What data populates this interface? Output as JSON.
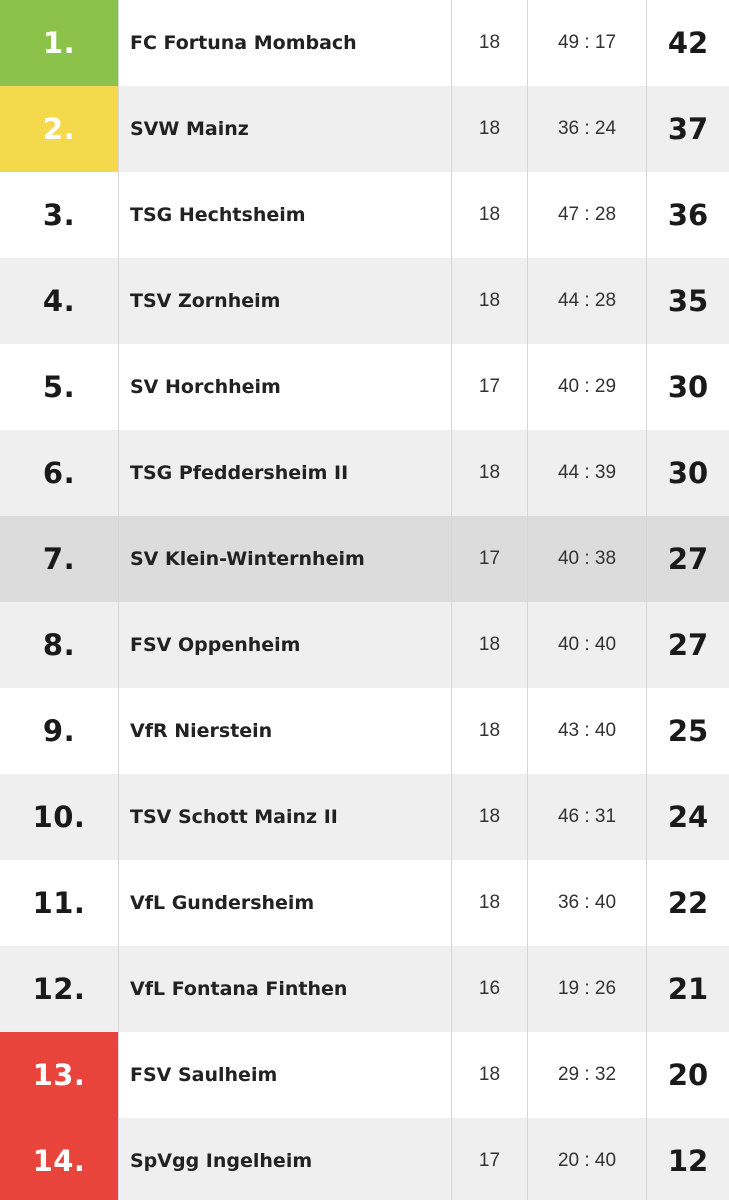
{
  "standings": [
    {
      "rank": "1.",
      "team": "FC Fortuna Mombach",
      "games": "18",
      "goals": "49 : 17",
      "points": "42",
      "marker_color": "#8bc34a"
    },
    {
      "rank": "2.",
      "team": "SVW Mainz",
      "games": "18",
      "goals": "36 : 24",
      "points": "37",
      "marker_color": "#f5d94c"
    },
    {
      "rank": "3.",
      "team": "TSG Hechtsheim",
      "games": "18",
      "goals": "47 : 28",
      "points": "36"
    },
    {
      "rank": "4.",
      "team": "TSV Zornheim",
      "games": "18",
      "goals": "44 : 28",
      "points": "35"
    },
    {
      "rank": "5.",
      "team": "SV Horchheim",
      "games": "17",
      "goals": "40 : 29",
      "points": "30"
    },
    {
      "rank": "6.",
      "team": "TSG Pfeddersheim II",
      "games": "18",
      "goals": "44 : 39",
      "points": "30"
    },
    {
      "rank": "7.",
      "team": "SV Klein-Winternheim",
      "games": "17",
      "goals": "40 : 38",
      "points": "27",
      "highlight_color": "#dcdcdc"
    },
    {
      "rank": "8.",
      "team": "FSV Oppenheim",
      "games": "18",
      "goals": "40 : 40",
      "points": "27"
    },
    {
      "rank": "9.",
      "team": "VfR Nierstein",
      "games": "18",
      "goals": "43 : 40",
      "points": "25"
    },
    {
      "rank": "10.",
      "team": "TSV Schott Mainz II",
      "games": "18",
      "goals": "46 : 31",
      "points": "24"
    },
    {
      "rank": "11.",
      "team": "VfL Gundersheim",
      "games": "18",
      "goals": "36 : 40",
      "points": "22"
    },
    {
      "rank": "12.",
      "team": "VfL Fontana Finthen",
      "games": "16",
      "goals": "19 : 26",
      "points": "21"
    },
    {
      "rank": "13.",
      "team": "FSV Saulheim",
      "games": "18",
      "goals": "29 : 32",
      "points": "20",
      "marker_color": "#e8443c"
    },
    {
      "rank": "14.",
      "team": "SpVgg Ingelheim",
      "games": "17",
      "goals": "20 : 40",
      "points": "12",
      "marker_color": "#e8443c"
    }
  ]
}
